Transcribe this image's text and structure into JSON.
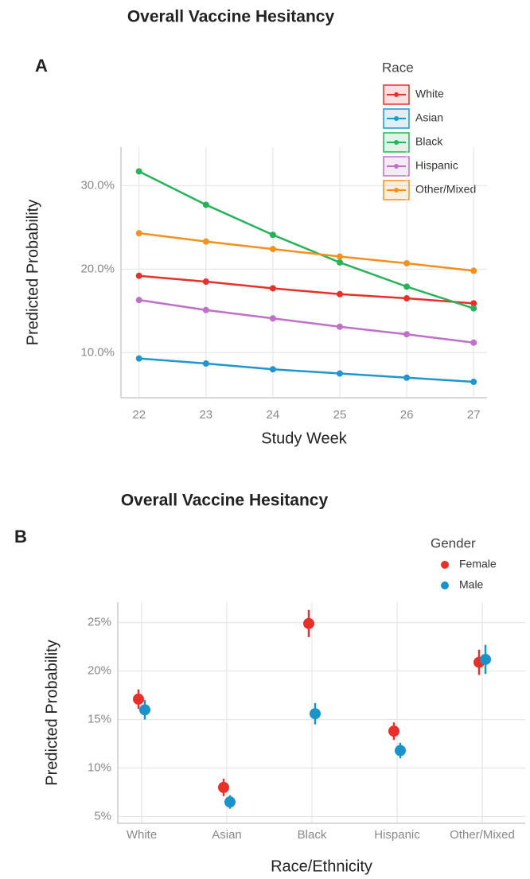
{
  "chart_data": [
    {
      "type": "line",
      "title": "Overall Vaccine Hesitancy",
      "panel_label": "A",
      "x_label": "Study Week",
      "y_label": "Predicted Probability",
      "legend_title": "Race",
      "x": [
        22,
        23,
        24,
        25,
        26,
        27
      ],
      "series": [
        {
          "name": "White",
          "color": "#e8302a",
          "values": [
            19.2,
            18.5,
            17.7,
            17.0,
            16.5,
            15.9
          ]
        },
        {
          "name": "Asian",
          "color": "#1f96d0",
          "values": [
            9.3,
            8.7,
            8.0,
            7.5,
            7.0,
            6.5
          ]
        },
        {
          "name": "Black",
          "color": "#27b35a",
          "values": [
            31.7,
            27.7,
            24.1,
            20.8,
            17.9,
            15.3
          ]
        },
        {
          "name": "Hispanic",
          "color": "#c070c8",
          "values": [
            16.3,
            15.1,
            14.1,
            13.1,
            12.2,
            11.2
          ]
        },
        {
          "name": "Other/Mixed",
          "color": "#f4901e",
          "values": [
            24.3,
            23.3,
            22.4,
            21.5,
            20.7,
            19.8
          ]
        }
      ],
      "xlim": [
        21.73,
        27.2
      ],
      "xticks": [
        22,
        23,
        24,
        25,
        26,
        27
      ],
      "ylim": [
        4.6,
        34.6
      ],
      "yticks": [
        {
          "value": 10,
          "label": "10.0%"
        },
        {
          "value": 20,
          "label": "20.0%"
        },
        {
          "value": 30,
          "label": "30.0%"
        }
      ],
      "grid": true,
      "legend": "top-right"
    },
    {
      "type": "scatter",
      "title": "Overall Vaccine Hesitancy",
      "panel_label": "B",
      "x_label": "Race/Ethnicity",
      "y_label": "Predicted Probability",
      "legend_title": "Gender",
      "categories": [
        "White",
        "Asian",
        "Black",
        "Hispanic",
        "Other/Mixed"
      ],
      "series": [
        {
          "name": "Female",
          "color": "#e8302a",
          "values": [
            17.1,
            8.0,
            24.9,
            13.8,
            20.9
          ],
          "errors": [
            1.0,
            0.9,
            1.4,
            0.9,
            1.3
          ]
        },
        {
          "name": "Male",
          "color": "#1a93c8",
          "values": [
            16.0,
            6.5,
            15.6,
            11.8,
            21.2
          ],
          "errors": [
            1.0,
            0.7,
            1.1,
            0.8,
            1.5
          ]
        }
      ],
      "ylim": [
        4.3,
        27.1
      ],
      "yticks": [
        {
          "value": 5,
          "label": "5%"
        },
        {
          "value": 10,
          "label": "10%"
        },
        {
          "value": 15,
          "label": "15%"
        },
        {
          "value": 20,
          "label": "20%"
        },
        {
          "value": 25,
          "label": "25%"
        }
      ],
      "grid": true,
      "legend": "top-right"
    }
  ]
}
